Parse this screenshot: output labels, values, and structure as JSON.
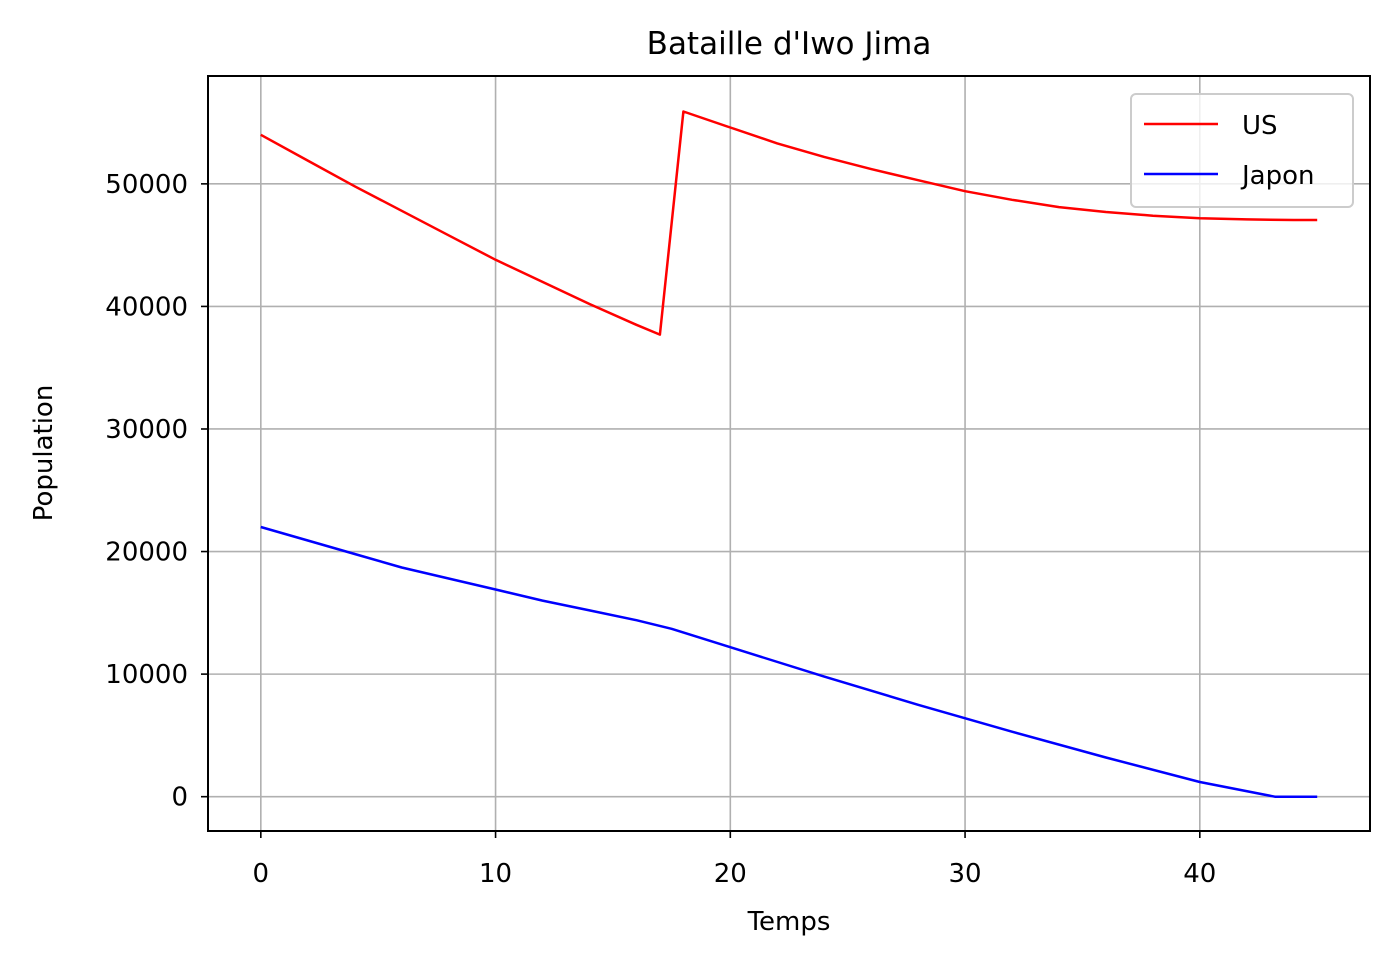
{
  "chart_data": {
    "type": "line",
    "title": "Bataille d'Iwo Jima",
    "xlabel": "Temps",
    "ylabel": "Population",
    "xlim": [
      -2.25,
      47.25
    ],
    "ylim": [
      -2800,
      58800
    ],
    "xticks": [
      0,
      10,
      20,
      30,
      40
    ],
    "yticks": [
      0,
      10000,
      20000,
      30000,
      40000,
      50000
    ],
    "grid": true,
    "legend_position": "top-right",
    "series": [
      {
        "name": "US",
        "color": "#ff0000",
        "x": [
          0,
          2,
          4,
          6,
          8,
          10,
          12,
          14,
          16,
          17,
          18,
          20,
          22,
          24,
          26,
          28,
          30,
          32,
          34,
          36,
          38,
          40,
          42,
          44,
          45
        ],
        "y": [
          54000,
          51900,
          49800,
          47800,
          45800,
          43800,
          42000,
          40200,
          38500,
          37700,
          55900,
          54600,
          53300,
          52200,
          51200,
          50300,
          49400,
          48700,
          48100,
          47700,
          47400,
          47200,
          47100,
          47050,
          47050
        ]
      },
      {
        "name": "Japon",
        "color": "#0000ff",
        "x": [
          0,
          2,
          4,
          6,
          8,
          10,
          12,
          14,
          16,
          17.5,
          20,
          24,
          28,
          32,
          36,
          40,
          43.2,
          45
        ],
        "y": [
          22000,
          20900,
          19800,
          18700,
          17800,
          16900,
          16000,
          15200,
          14400,
          13700,
          12200,
          9800,
          7500,
          5300,
          3200,
          1200,
          0,
          0
        ]
      }
    ]
  }
}
